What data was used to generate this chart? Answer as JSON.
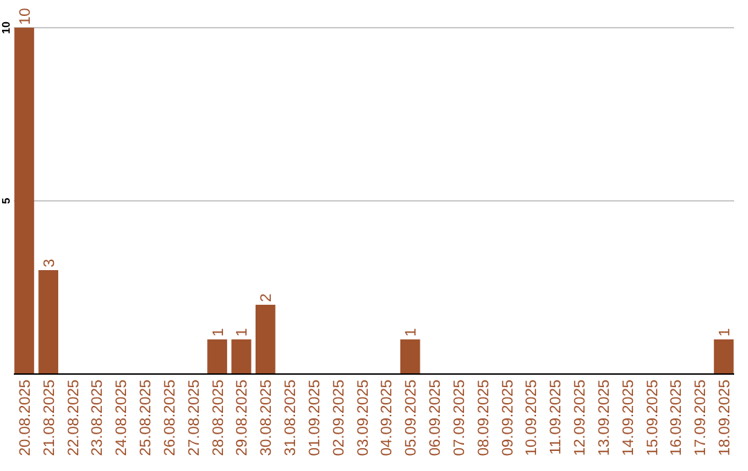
{
  "chart_data": {
    "type": "bar",
    "categories": [
      "20.08.2025",
      "21.08.2025",
      "22.08.2025",
      "23.08.2025",
      "24.08.2025",
      "25.08.2025",
      "26.08.2025",
      "27.08.2025",
      "28.08.2025",
      "29.08.2025",
      "30.08.2025",
      "31.08.2025",
      "01.09.2025",
      "02.09.2025",
      "03.09.2025",
      "04.09.2025",
      "05.09.2025",
      "06.09.2025",
      "07.09.2025",
      "08.09.2025",
      "09.09.2025",
      "10.09.2025",
      "11.09.2025",
      "12.09.2025",
      "13.09.2025",
      "14.09.2025",
      "15.09.2025",
      "16.09.2025",
      "17.09.2025",
      "18.09.2025"
    ],
    "values": [
      10,
      3,
      0,
      0,
      0,
      0,
      0,
      0,
      1,
      1,
      2,
      0,
      0,
      0,
      0,
      0,
      1,
      0,
      0,
      0,
      0,
      0,
      0,
      0,
      0,
      0,
      0,
      0,
      0,
      1
    ],
    "value_labels": [
      "10",
      "3",
      null,
      null,
      null,
      null,
      null,
      null,
      "1",
      "1",
      "2",
      null,
      null,
      null,
      null,
      null,
      "1",
      null,
      null,
      null,
      null,
      null,
      null,
      null,
      null,
      null,
      null,
      null,
      null,
      "1"
    ],
    "color": "#a0522d",
    "ylim": [
      0,
      10
    ],
    "yticks": [
      5,
      10
    ],
    "grid": "y"
  }
}
